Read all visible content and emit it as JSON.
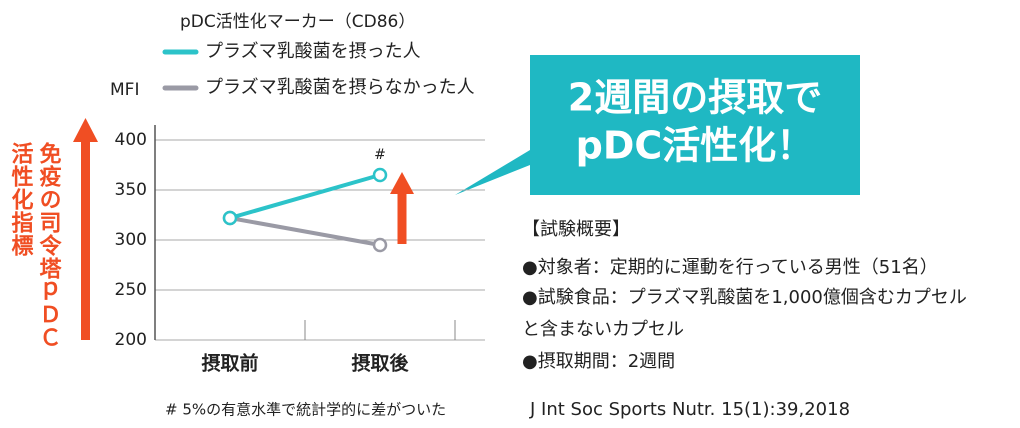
{
  "chart_data": {
    "type": "line",
    "title": "pDC活性化マーカー（CD86）",
    "y_label": "MFI",
    "y_annotation": [
      "免疫の司令塔ｐＤＣ",
      "活性化指標"
    ],
    "categories": [
      "摂取前",
      "摂取後"
    ],
    "series": [
      {
        "name": "プラズマ乳酸菌を摂った人",
        "color": "#2cc3c9",
        "values": [
          322,
          365
        ]
      },
      {
        "name": "プラズマ乳酸菌を摂らなかった人",
        "color": "#9a9aa5",
        "values": [
          322,
          295
        ]
      }
    ],
    "significance_mark": "#",
    "ylim": [
      200,
      400
    ],
    "yticks": [
      200,
      250,
      300,
      350,
      400
    ],
    "grid": true,
    "accent_color": "#f04e23",
    "footnote": "# 5%の有意水準で統計学的に差がついた"
  },
  "callout": {
    "lines": [
      "2週間の摂取で",
      "pDC活性化！"
    ],
    "color": "#1fb8c3"
  },
  "summary": {
    "lines": [
      "【試験概要】",
      "●対象者：定期的に運動を行っている男性（51名）",
      "●試験食品：プラズマ乳酸菌を1,000億個含むカプセル",
      "と含まないカプセル",
      "●摂取期間：2週間"
    ]
  },
  "citation": "J Int Soc Sports Nutr. 15(1):39,2018"
}
